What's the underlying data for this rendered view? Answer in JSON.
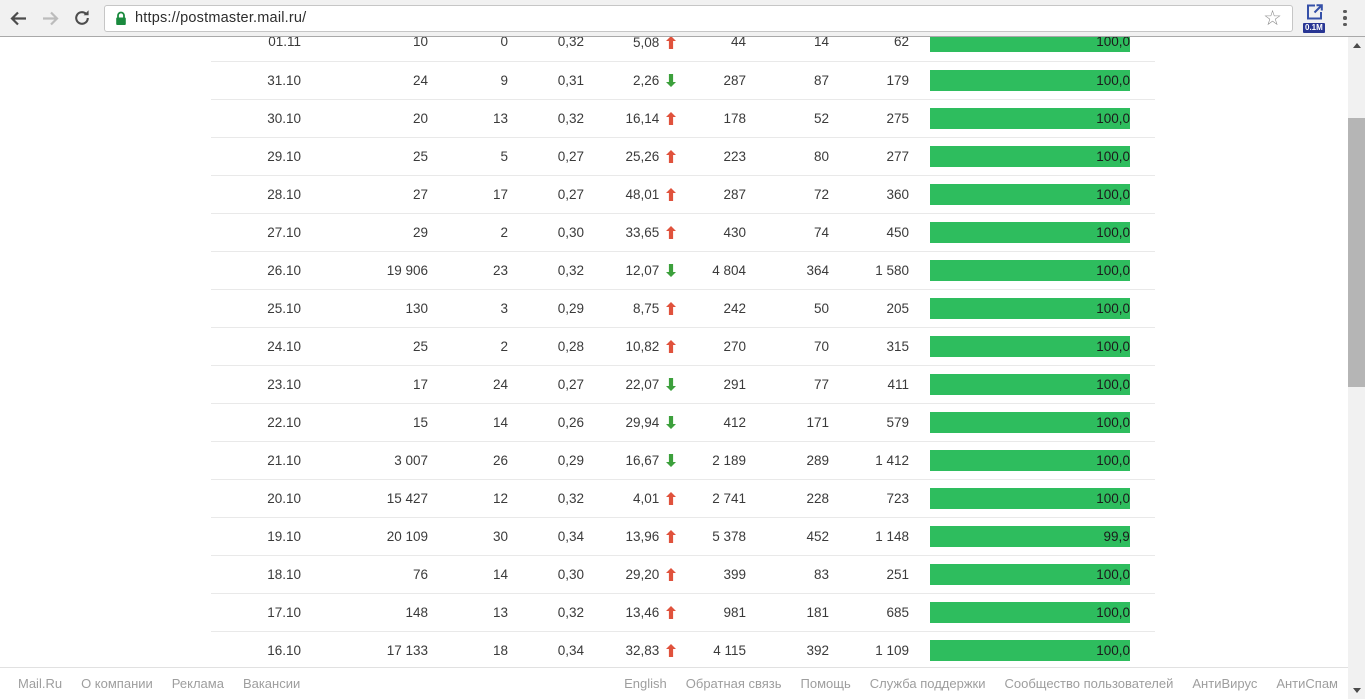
{
  "browser": {
    "url": "https://postmaster.mail.ru/",
    "extension_badge": "0.1M"
  },
  "colors": {
    "trend_up": "#e0523c",
    "trend_down": "#3ca03c",
    "bar_green": "#2ebd5e",
    "lock_green": "#1a8a3e"
  },
  "table": {
    "rows": [
      {
        "date": "01.11",
        "c1": "10",
        "c2": "0",
        "c3": "0,32",
        "pct": "5,08",
        "trend": "up",
        "c5": "44",
        "c6": "14",
        "c7": "62",
        "bar_label": "100,0",
        "bar_pct": 100
      },
      {
        "date": "31.10",
        "c1": "24",
        "c2": "9",
        "c3": "0,31",
        "pct": "2,26",
        "trend": "down",
        "c5": "287",
        "c6": "87",
        "c7": "179",
        "bar_label": "100,0",
        "bar_pct": 100
      },
      {
        "date": "30.10",
        "c1": "20",
        "c2": "13",
        "c3": "0,32",
        "pct": "16,14",
        "trend": "up",
        "c5": "178",
        "c6": "52",
        "c7": "275",
        "bar_label": "100,0",
        "bar_pct": 100
      },
      {
        "date": "29.10",
        "c1": "25",
        "c2": "5",
        "c3": "0,27",
        "pct": "25,26",
        "trend": "up",
        "c5": "223",
        "c6": "80",
        "c7": "277",
        "bar_label": "100,0",
        "bar_pct": 100
      },
      {
        "date": "28.10",
        "c1": "27",
        "c2": "17",
        "c3": "0,27",
        "pct": "48,01",
        "trend": "up",
        "c5": "287",
        "c6": "72",
        "c7": "360",
        "bar_label": "100,0",
        "bar_pct": 100
      },
      {
        "date": "27.10",
        "c1": "29",
        "c2": "2",
        "c3": "0,30",
        "pct": "33,65",
        "trend": "up",
        "c5": "430",
        "c6": "74",
        "c7": "450",
        "bar_label": "100,0",
        "bar_pct": 100
      },
      {
        "date": "26.10",
        "c1": "19 906",
        "c2": "23",
        "c3": "0,32",
        "pct": "12,07",
        "trend": "down",
        "c5": "4 804",
        "c6": "364",
        "c7": "1 580",
        "bar_label": "100,0",
        "bar_pct": 100
      },
      {
        "date": "25.10",
        "c1": "130",
        "c2": "3",
        "c3": "0,29",
        "pct": "8,75",
        "trend": "up",
        "c5": "242",
        "c6": "50",
        "c7": "205",
        "bar_label": "100,0",
        "bar_pct": 100
      },
      {
        "date": "24.10",
        "c1": "25",
        "c2": "2",
        "c3": "0,28",
        "pct": "10,82",
        "trend": "up",
        "c5": "270",
        "c6": "70",
        "c7": "315",
        "bar_label": "100,0",
        "bar_pct": 100
      },
      {
        "date": "23.10",
        "c1": "17",
        "c2": "24",
        "c3": "0,27",
        "pct": "22,07",
        "trend": "down",
        "c5": "291",
        "c6": "77",
        "c7": "411",
        "bar_label": "100,0",
        "bar_pct": 100
      },
      {
        "date": "22.10",
        "c1": "15",
        "c2": "14",
        "c3": "0,26",
        "pct": "29,94",
        "trend": "down",
        "c5": "412",
        "c6": "171",
        "c7": "579",
        "bar_label": "100,0",
        "bar_pct": 100
      },
      {
        "date": "21.10",
        "c1": "3 007",
        "c2": "26",
        "c3": "0,29",
        "pct": "16,67",
        "trend": "down",
        "c5": "2 189",
        "c6": "289",
        "c7": "1 412",
        "bar_label": "100,0",
        "bar_pct": 100
      },
      {
        "date": "20.10",
        "c1": "15 427",
        "c2": "12",
        "c3": "0,32",
        "pct": "4,01",
        "trend": "up",
        "c5": "2 741",
        "c6": "228",
        "c7": "723",
        "bar_label": "100,0",
        "bar_pct": 100
      },
      {
        "date": "19.10",
        "c1": "20 109",
        "c2": "30",
        "c3": "0,34",
        "pct": "13,96",
        "trend": "up",
        "c5": "5 378",
        "c6": "452",
        "c7": "1 148",
        "bar_label": "99,9",
        "bar_pct": 99.9
      },
      {
        "date": "18.10",
        "c1": "76",
        "c2": "14",
        "c3": "0,30",
        "pct": "29,20",
        "trend": "up",
        "c5": "399",
        "c6": "83",
        "c7": "251",
        "bar_label": "100,0",
        "bar_pct": 100
      },
      {
        "date": "17.10",
        "c1": "148",
        "c2": "13",
        "c3": "0,32",
        "pct": "13,46",
        "trend": "up",
        "c5": "981",
        "c6": "181",
        "c7": "685",
        "bar_label": "100,0",
        "bar_pct": 100
      },
      {
        "date": "16.10",
        "c1": "17 133",
        "c2": "18",
        "c3": "0,34",
        "pct": "32,83",
        "trend": "up",
        "c5": "4 115",
        "c6": "392",
        "c7": "1 109",
        "bar_label": "100,0",
        "bar_pct": 100
      }
    ]
  },
  "footer": {
    "left": [
      "Mail.Ru",
      "О компании",
      "Реклама",
      "Вакансии"
    ],
    "right": [
      "English",
      "Обратная связь",
      "Помощь",
      "Служба поддержки",
      "Сообщество пользователей",
      "АнтиВирус",
      "АнтиСпам"
    ]
  }
}
